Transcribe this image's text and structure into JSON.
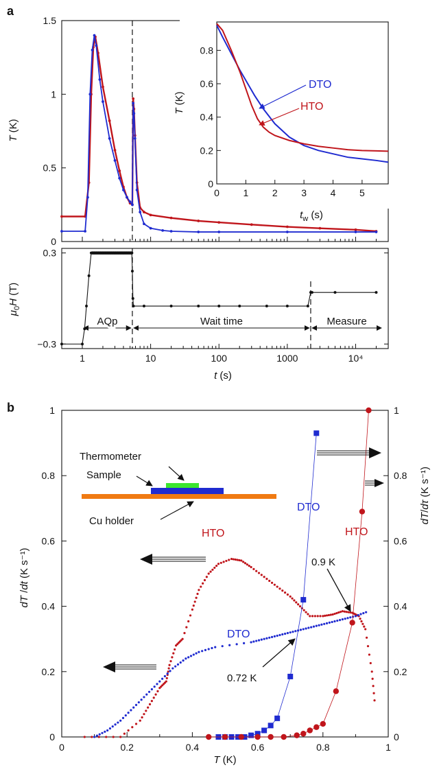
{
  "panels": {
    "a_label": "a",
    "b_label": "b"
  },
  "colors": {
    "red": "#c0151b",
    "blue": "#1f2bd0",
    "black": "#111111",
    "green": "#3be62e",
    "orange": "#f07a12"
  },
  "chart_data": [
    {
      "id": "a_top",
      "type": "line",
      "ylabel_var": "T",
      "ylabel_unit": "(K)",
      "xscale": "log",
      "xlim": [
        0.5,
        30000
      ],
      "ylim": [
        0,
        1.5
      ],
      "yticks": [
        "0",
        "0.5",
        "1",
        "1.5"
      ],
      "series": [
        {
          "name": "",
          "color": "red",
          "x": [
            0.5,
            1.1,
            1.25,
            1.35,
            1.45,
            1.55,
            1.7,
            2.0,
            2.5,
            3.0,
            3.5,
            4.0,
            4.5,
            5.0,
            5.4,
            5.55,
            5.7,
            5.9,
            6.3,
            7,
            8,
            10,
            20,
            50,
            100,
            300,
            1000,
            3000,
            10000,
            20000
          ],
          "y": [
            0.17,
            0.17,
            0.4,
            1.0,
            1.32,
            1.39,
            1.28,
            1.05,
            0.82,
            0.62,
            0.48,
            0.37,
            0.3,
            0.26,
            0.25,
            0.97,
            0.9,
            0.72,
            0.4,
            0.23,
            0.2,
            0.18,
            0.16,
            0.14,
            0.13,
            0.115,
            0.1,
            0.09,
            0.08,
            0.07
          ]
        },
        {
          "name": "",
          "color": "blue",
          "x": [
            0.5,
            1.1,
            1.2,
            1.3,
            1.4,
            1.5,
            1.6,
            1.8,
            2.0,
            2.5,
            3.0,
            3.5,
            4.0,
            4.5,
            5.0,
            5.4,
            5.55,
            5.7,
            5.9,
            6.3,
            7,
            8,
            10,
            15,
            20,
            50,
            100,
            1000,
            10000,
            20000
          ],
          "y": [
            0.07,
            0.07,
            0.3,
            1.0,
            1.3,
            1.4,
            1.33,
            1.1,
            0.95,
            0.7,
            0.55,
            0.43,
            0.35,
            0.3,
            0.27,
            0.25,
            0.94,
            0.87,
            0.7,
            0.35,
            0.2,
            0.12,
            0.09,
            0.075,
            0.07,
            0.065,
            0.065,
            0.065,
            0.065,
            0.065
          ]
        }
      ]
    },
    {
      "id": "a_inset",
      "type": "line",
      "xlabel_var": "t",
      "xlabel_sub": "w",
      "xlabel_unit": "(s)",
      "ylabel_var": "T",
      "ylabel_unit": "(K)",
      "xlim": [
        0,
        5.9
      ],
      "ylim": [
        0,
        0.97
      ],
      "xticks": [
        "0",
        "1",
        "2",
        "3",
        "4",
        "5"
      ],
      "yticks": [
        "0",
        "0.2",
        "0.4",
        "0.6",
        "0.8"
      ],
      "series": [
        {
          "name": "DTO",
          "color": "blue",
          "x": [
            0,
            0.2,
            0.5,
            0.8,
            1.0,
            1.3,
            1.6,
            2.0,
            2.5,
            3.0,
            3.5,
            4.0,
            4.5,
            5.0,
            5.5,
            5.9
          ],
          "y": [
            0.95,
            0.88,
            0.78,
            0.68,
            0.62,
            0.53,
            0.45,
            0.36,
            0.28,
            0.23,
            0.2,
            0.18,
            0.16,
            0.15,
            0.14,
            0.13
          ]
        },
        {
          "name": "HTO",
          "color": "red",
          "x": [
            0,
            0.2,
            0.5,
            0.8,
            1.0,
            1.2,
            1.4,
            1.6,
            1.8,
            2.0,
            2.5,
            3.0,
            3.5,
            4.0,
            4.5,
            5.0,
            5.5,
            5.9
          ],
          "y": [
            0.96,
            0.92,
            0.8,
            0.67,
            0.57,
            0.47,
            0.39,
            0.34,
            0.31,
            0.29,
            0.26,
            0.24,
            0.225,
            0.215,
            0.205,
            0.2,
            0.198,
            0.196
          ]
        }
      ],
      "labels": [
        "DTO",
        "HTO"
      ]
    },
    {
      "id": "a_bottom",
      "type": "line",
      "xlabel_var": "t",
      "xlabel_unit": "(s)",
      "ylabel_prefix": "μ",
      "ylabel_sub": "0",
      "ylabel_var": "H",
      "ylabel_unit": "(T)",
      "xscale": "log",
      "xlim": [
        0.5,
        30000
      ],
      "ylim": [
        -0.33,
        0.33
      ],
      "xticks": [
        "1",
        "10",
        "100",
        "1000",
        "10⁴"
      ],
      "yticks": [
        "0.3",
        "−0.3"
      ],
      "series": [
        {
          "name": "",
          "color": "black",
          "x": [
            0.5,
            1.0,
            1.08,
            1.15,
            1.25,
            1.35,
            1.5,
            2,
            3,
            4,
            5.3,
            5.4,
            5.5,
            5.6,
            8,
            20,
            50,
            100,
            200,
            500,
            1000,
            2000,
            2200,
            2300,
            5000,
            20000
          ],
          "y": [
            -0.3,
            -0.3,
            -0.2,
            -0.05,
            0.15,
            0.3,
            0.3,
            0.3,
            0.3,
            0.3,
            0.3,
            0.18,
            0.0,
            -0.05,
            -0.05,
            -0.05,
            -0.05,
            -0.05,
            -0.05,
            -0.05,
            -0.05,
            -0.05,
            0.04,
            0.04,
            0.04,
            0.04
          ]
        }
      ],
      "regions": [
        {
          "label": "AQp",
          "from": 1.0,
          "to": 5.4
        },
        {
          "label": "Wait time",
          "from": 5.4,
          "to": 2200
        },
        {
          "label": "Measure",
          "from": 2200,
          "to": 25000
        }
      ]
    },
    {
      "id": "b",
      "type": "scatter",
      "xlabel_var": "T",
      "xlabel_unit": "(K)",
      "ylabel_left_var": "dT",
      "ylabel_left_den": "dt",
      "ylabel_left_unit": "(K s⁻¹)",
      "ylabel_right_var": "dT",
      "ylabel_right_den": "dτ",
      "ylabel_right_unit": "(K s⁻¹)",
      "xlim": [
        0,
        1
      ],
      "ylim": [
        0,
        1
      ],
      "xticks": [
        "0",
        "0.2",
        "0.4",
        "0.6",
        "0.8",
        "1"
      ],
      "yticks": [
        "0",
        "0.2",
        "0.4",
        "0.6",
        "0.8",
        "1"
      ],
      "series": [
        {
          "name": "HTO",
          "axis": "left",
          "color": "red",
          "x": [
            0.07,
            0.18,
            0.24,
            0.27,
            0.3,
            0.32,
            0.33,
            0.35,
            0.37,
            0.4,
            0.42,
            0.45,
            0.48,
            0.52,
            0.55,
            0.58,
            0.62,
            0.66,
            0.7,
            0.73,
            0.76,
            0.8,
            0.83,
            0.86,
            0.89,
            0.91,
            0.93,
            0.95,
            0.96
          ],
          "y": [
            0.0,
            0.0,
            0.05,
            0.1,
            0.15,
            0.17,
            0.22,
            0.28,
            0.3,
            0.39,
            0.45,
            0.5,
            0.53,
            0.545,
            0.54,
            0.52,
            0.49,
            0.46,
            0.43,
            0.4,
            0.37,
            0.37,
            0.375,
            0.385,
            0.38,
            0.37,
            0.33,
            0.2,
            0.09
          ]
        },
        {
          "name": "DTO",
          "axis": "left",
          "color": "blue",
          "x": [
            0.1,
            0.14,
            0.18,
            0.22,
            0.26,
            0.3,
            0.34,
            0.38,
            0.42,
            0.47,
            0.58,
            0.62,
            0.66,
            0.7,
            0.74,
            0.78,
            0.82,
            0.86,
            0.9,
            0.94
          ],
          "y": [
            0.0,
            0.02,
            0.05,
            0.09,
            0.13,
            0.17,
            0.21,
            0.24,
            0.26,
            0.275,
            0.29,
            0.3,
            0.31,
            0.32,
            0.33,
            0.34,
            0.35,
            0.36,
            0.37,
            0.385
          ]
        },
        {
          "name": "DTO",
          "axis": "right",
          "color": "blue",
          "x": [
            0.48,
            0.5,
            0.52,
            0.54,
            0.56,
            0.58,
            0.6,
            0.62,
            0.64,
            0.66,
            0.7,
            0.74,
            0.78
          ],
          "y": [
            0.0,
            0.0,
            0.0,
            0.0,
            0.0,
            0.005,
            0.01,
            0.02,
            0.035,
            0.057,
            0.185,
            0.42,
            0.93
          ]
        },
        {
          "name": "HTO",
          "axis": "right",
          "color": "red",
          "x": [
            0.45,
            0.5,
            0.55,
            0.6,
            0.64,
            0.68,
            0.72,
            0.74,
            0.76,
            0.78,
            0.8,
            0.84,
            0.89,
            0.92,
            0.94
          ],
          "y": [
            0.0,
            0.0,
            0.0,
            0.0,
            0.0,
            0.0,
            0.005,
            0.01,
            0.02,
            0.03,
            0.04,
            0.14,
            0.35,
            0.69,
            1.0
          ]
        }
      ],
      "labels": {
        "hto_left": "HTO",
        "dto_left": "DTO",
        "dto_right": "DTO",
        "hto_right": "HTO",
        "ann_09": "0.9 K",
        "ann_072": "0.72 K"
      },
      "inset": {
        "thermometer": "Thermometer",
        "sample": "Sample",
        "holder": "Cu holder"
      }
    }
  ]
}
